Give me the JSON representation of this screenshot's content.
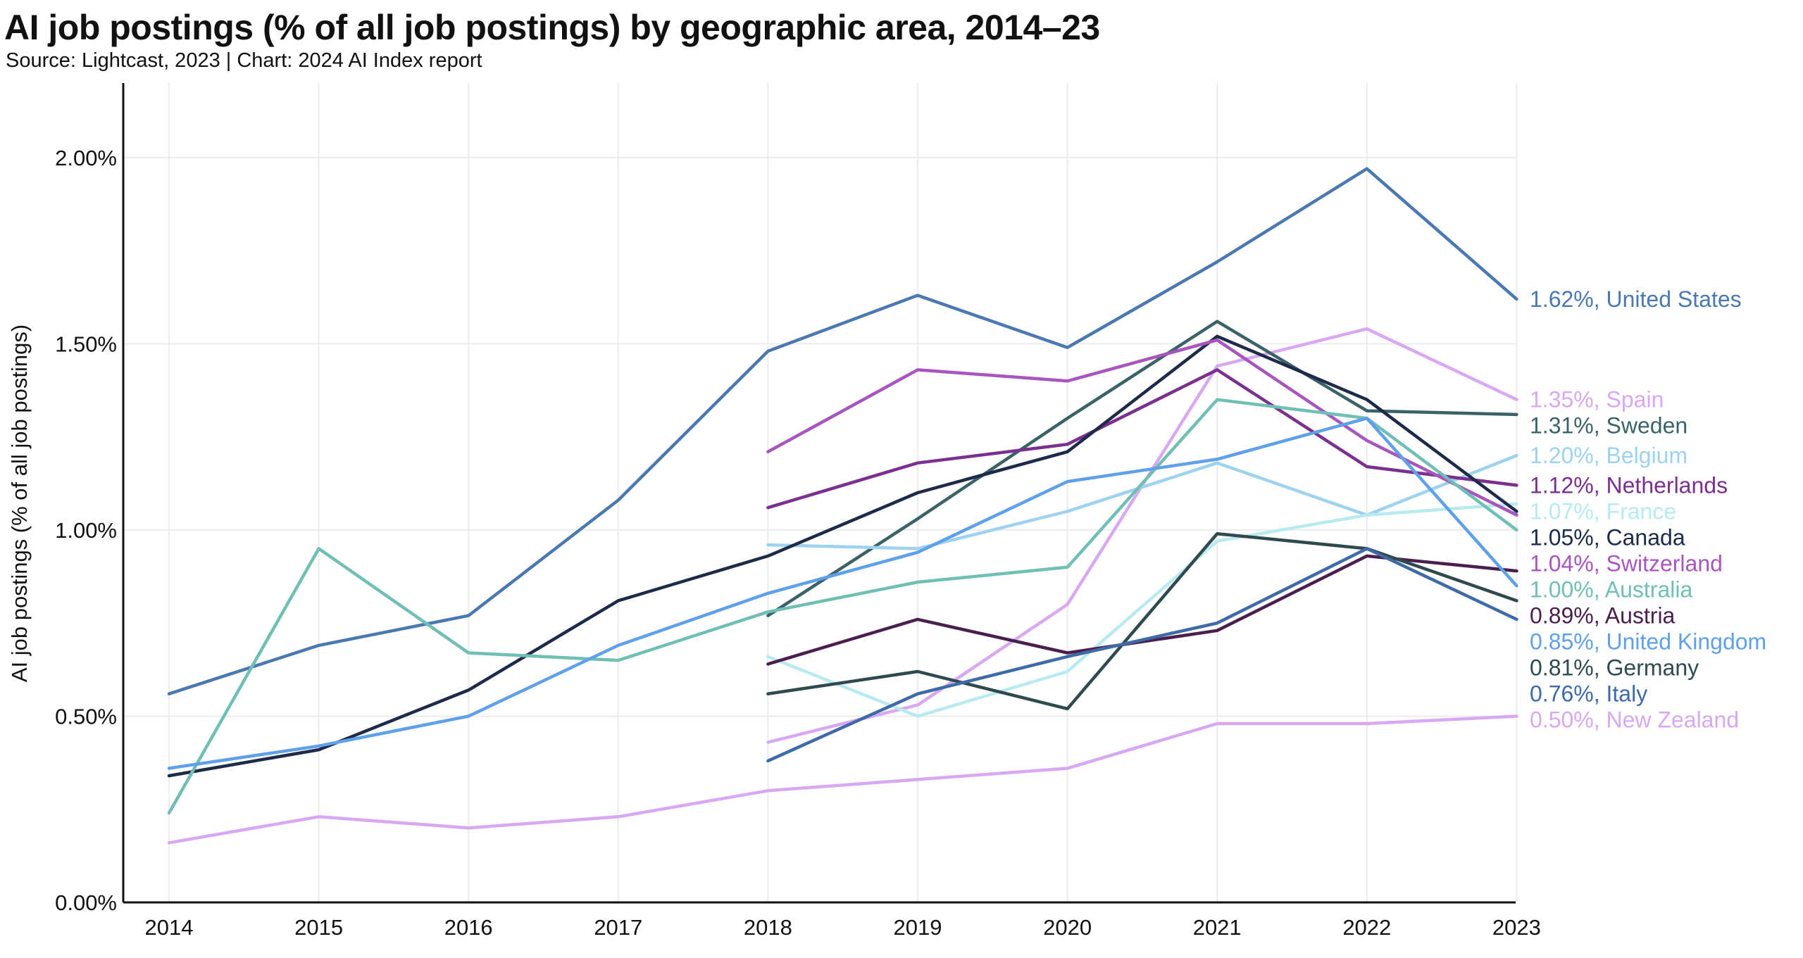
{
  "title": "AI job postings (% of all job postings) by geographic area, 2014–23",
  "subtitle": "Source: Lightcast, 2023 | Chart: 2024 AI Index report",
  "chart_data": {
    "type": "line",
    "ylabel": "AI job postings (% of all job postings)",
    "xlabel": "",
    "x": [
      2014,
      2015,
      2016,
      2017,
      2018,
      2019,
      2020,
      2021,
      2022,
      2023
    ],
    "x_tick_labels": [
      "2014",
      "2015",
      "2016",
      "2017",
      "2018",
      "2019",
      "2020",
      "2021",
      "2022",
      "2023"
    ],
    "ylim": [
      0,
      2.2
    ],
    "y_ticks": [
      0,
      0.5,
      1.0,
      1.5,
      2.0
    ],
    "y_tick_labels": [
      "0.00%",
      "0.50%",
      "1.00%",
      "1.50%",
      "2.00%"
    ],
    "grid": "vertical",
    "legend": "inline end labels",
    "series": [
      {
        "name": "United States",
        "end_label": "1.62%, United States",
        "color": "#4a78b0",
        "values": [
          0.56,
          0.69,
          0.77,
          1.08,
          1.48,
          1.63,
          1.49,
          1.72,
          1.97,
          1.62
        ]
      },
      {
        "name": "Spain",
        "end_label": "1.35%, Spain",
        "color": "#d9a8f2",
        "values": [
          null,
          null,
          null,
          null,
          0.43,
          0.53,
          0.8,
          1.44,
          1.54,
          1.35
        ]
      },
      {
        "name": "Sweden",
        "end_label": "1.31%, Sweden",
        "color": "#3a6368",
        "values": [
          null,
          null,
          null,
          null,
          0.77,
          1.03,
          1.3,
          1.56,
          1.32,
          1.31
        ]
      },
      {
        "name": "Belgium",
        "end_label": "1.20%, Belgium",
        "color": "#9ed3f0",
        "values": [
          null,
          null,
          null,
          null,
          0.96,
          0.95,
          1.05,
          1.18,
          1.04,
          1.2
        ]
      },
      {
        "name": "Netherlands",
        "end_label": "1.12%, Netherlands",
        "color": "#7b2f8e",
        "values": [
          null,
          null,
          null,
          null,
          1.06,
          1.18,
          1.23,
          1.43,
          1.17,
          1.12
        ]
      },
      {
        "name": "France",
        "end_label": "1.07%, France",
        "color": "#b8eaf2",
        "values": [
          null,
          null,
          null,
          null,
          0.66,
          0.5,
          0.62,
          0.97,
          1.04,
          1.07
        ]
      },
      {
        "name": "Canada",
        "end_label": "1.05%, Canada",
        "color": "#1e2a4a",
        "values": [
          0.34,
          0.41,
          0.57,
          0.81,
          0.93,
          1.1,
          1.21,
          1.52,
          1.35,
          1.05
        ]
      },
      {
        "name": "Switzerland",
        "end_label": "1.04%, Switzerland",
        "color": "#a855c0",
        "values": [
          null,
          null,
          null,
          null,
          1.21,
          1.43,
          1.4,
          1.51,
          1.24,
          1.04
        ]
      },
      {
        "name": "Australia",
        "end_label": "1.00%, Australia",
        "color": "#6fbfb5",
        "values": [
          0.24,
          0.95,
          0.67,
          0.65,
          0.78,
          0.86,
          0.9,
          1.35,
          1.3,
          1.0
        ]
      },
      {
        "name": "Austria",
        "end_label": "0.89%, Austria",
        "color": "#4a1f4e",
        "values": [
          null,
          null,
          null,
          null,
          0.64,
          0.76,
          0.67,
          0.73,
          0.93,
          0.89
        ]
      },
      {
        "name": "United Kingdom",
        "end_label": "0.85%, United Kingdom",
        "color": "#5fa0ea",
        "values": [
          0.36,
          0.42,
          0.5,
          0.69,
          0.83,
          0.94,
          1.13,
          1.19,
          1.3,
          0.85
        ]
      },
      {
        "name": "Germany",
        "end_label": "0.81%, Germany",
        "color": "#2f4a4e",
        "values": [
          null,
          null,
          null,
          null,
          0.56,
          0.62,
          0.52,
          0.99,
          0.95,
          0.81
        ]
      },
      {
        "name": "Italy",
        "end_label": "0.76%, Italy",
        "color": "#3e6aa8",
        "values": [
          null,
          null,
          null,
          null,
          0.38,
          0.56,
          0.66,
          0.75,
          0.95,
          0.76
        ]
      },
      {
        "name": "New Zealand",
        "end_label": "0.50%, New Zealand",
        "color": "#d9a8f2",
        "values": [
          0.16,
          0.23,
          0.2,
          0.23,
          0.3,
          0.33,
          0.36,
          0.48,
          0.48,
          0.5
        ]
      }
    ]
  }
}
